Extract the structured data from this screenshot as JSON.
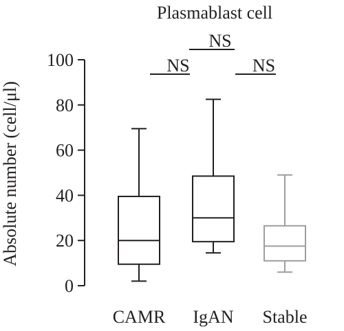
{
  "chart_data": {
    "type": "box",
    "title": "Plasmablast cell",
    "ylabel": "Absolute number (cell/μl)",
    "xlabel": "",
    "ylim": [
      0,
      100
    ],
    "yticks": [
      0,
      20,
      40,
      60,
      80,
      100
    ],
    "categories": [
      "CAMR",
      "IgAN",
      "Stable"
    ],
    "boxes": [
      {
        "category": "CAMR",
        "min": 2,
        "q1": 9.5,
        "median": 20,
        "q3": 39.5,
        "max": 69.5,
        "color": "#231f20"
      },
      {
        "category": "IgAN",
        "min": 14.5,
        "q1": 19.5,
        "median": 30,
        "q3": 48.5,
        "max": 82.5,
        "color": "#231f20"
      },
      {
        "category": "Stable",
        "min": 6,
        "q1": 11,
        "median": 17.5,
        "q3": 26.5,
        "max": 49,
        "color": "#9d9d9c"
      }
    ],
    "significance": [
      {
        "from": "CAMR",
        "to": "IgAN",
        "label": "NS"
      },
      {
        "from": "CAMR",
        "to": "Stable",
        "label": "NS"
      },
      {
        "from": "IgAN",
        "to": "Stable",
        "label": "NS"
      }
    ]
  }
}
